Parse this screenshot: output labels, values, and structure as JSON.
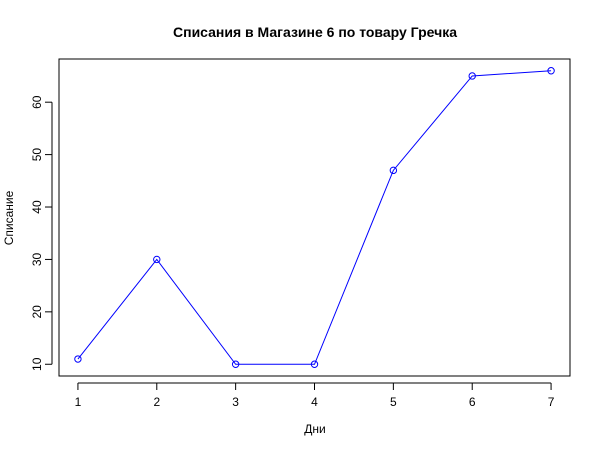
{
  "chart_data": {
    "type": "line",
    "title": "Списания в Магазине 6 по товару Гречка",
    "xlabel": "Дни",
    "ylabel": "Списание",
    "x": [
      1,
      2,
      3,
      4,
      5,
      6,
      7
    ],
    "series": [
      {
        "values": [
          11,
          30,
          10,
          10,
          47,
          65,
          66
        ]
      }
    ],
    "xticks": [
      "1",
      "2",
      "3",
      "4",
      "5",
      "6",
      "7"
    ],
    "yticks": [
      "10",
      "20",
      "30",
      "40",
      "50",
      "60"
    ],
    "xlim": [
      0.76,
      7.24
    ],
    "ylim": [
      7.76,
      68.24
    ],
    "grid": false,
    "line_color": "#0000ff",
    "marker": "open-circle"
  }
}
